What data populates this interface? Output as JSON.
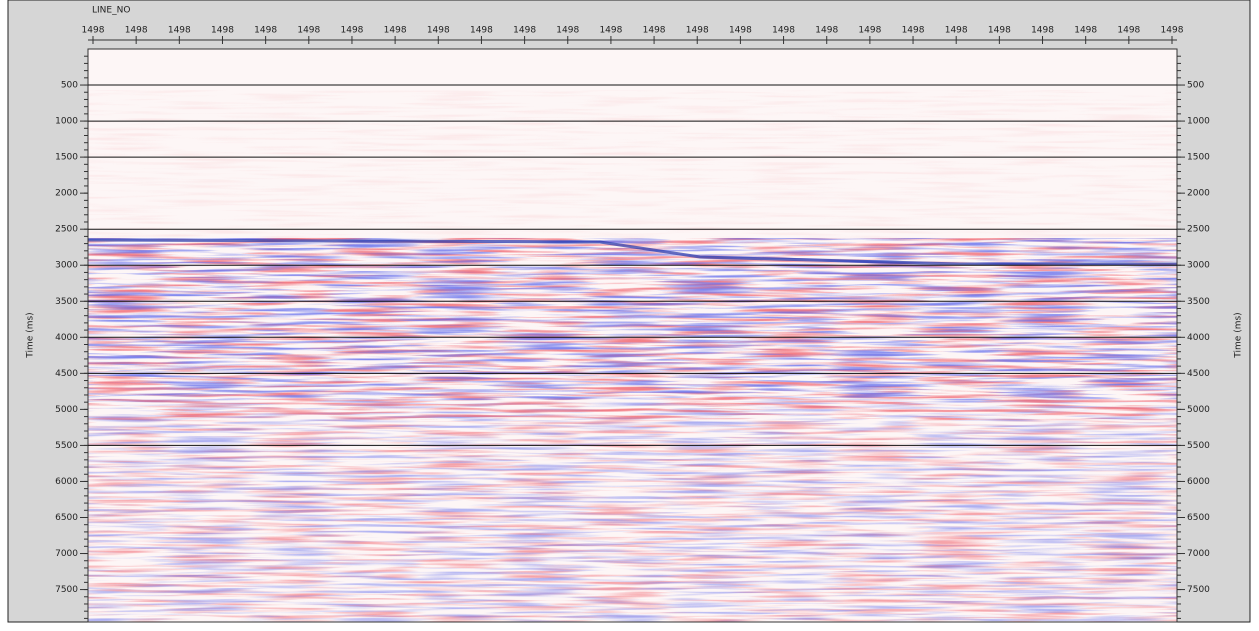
{
  "chart_data": {
    "type": "seismic",
    "x_label": "LINE_NO",
    "categories": [
      "1498",
      "1498",
      "1498",
      "1498",
      "1498",
      "1498",
      "1498",
      "1498",
      "1498",
      "1498",
      "1498",
      "1498",
      "1498",
      "1498",
      "1498",
      "1498",
      "1498",
      "1498",
      "1498",
      "1498",
      "1498",
      "1498",
      "1498",
      "1498",
      "1498",
      "1498"
    ],
    "y_label": "Time (ms)",
    "ylim": [
      0,
      7950
    ],
    "yticks": [
      500,
      1000,
      1500,
      2000,
      2500,
      3000,
      3500,
      4000,
      4500,
      5000,
      5500,
      6000,
      6500,
      7000,
      7500
    ],
    "grid_lines": [
      500,
      1000,
      1500,
      2500,
      3000,
      3500,
      4000,
      4500,
      5500
    ]
  }
}
